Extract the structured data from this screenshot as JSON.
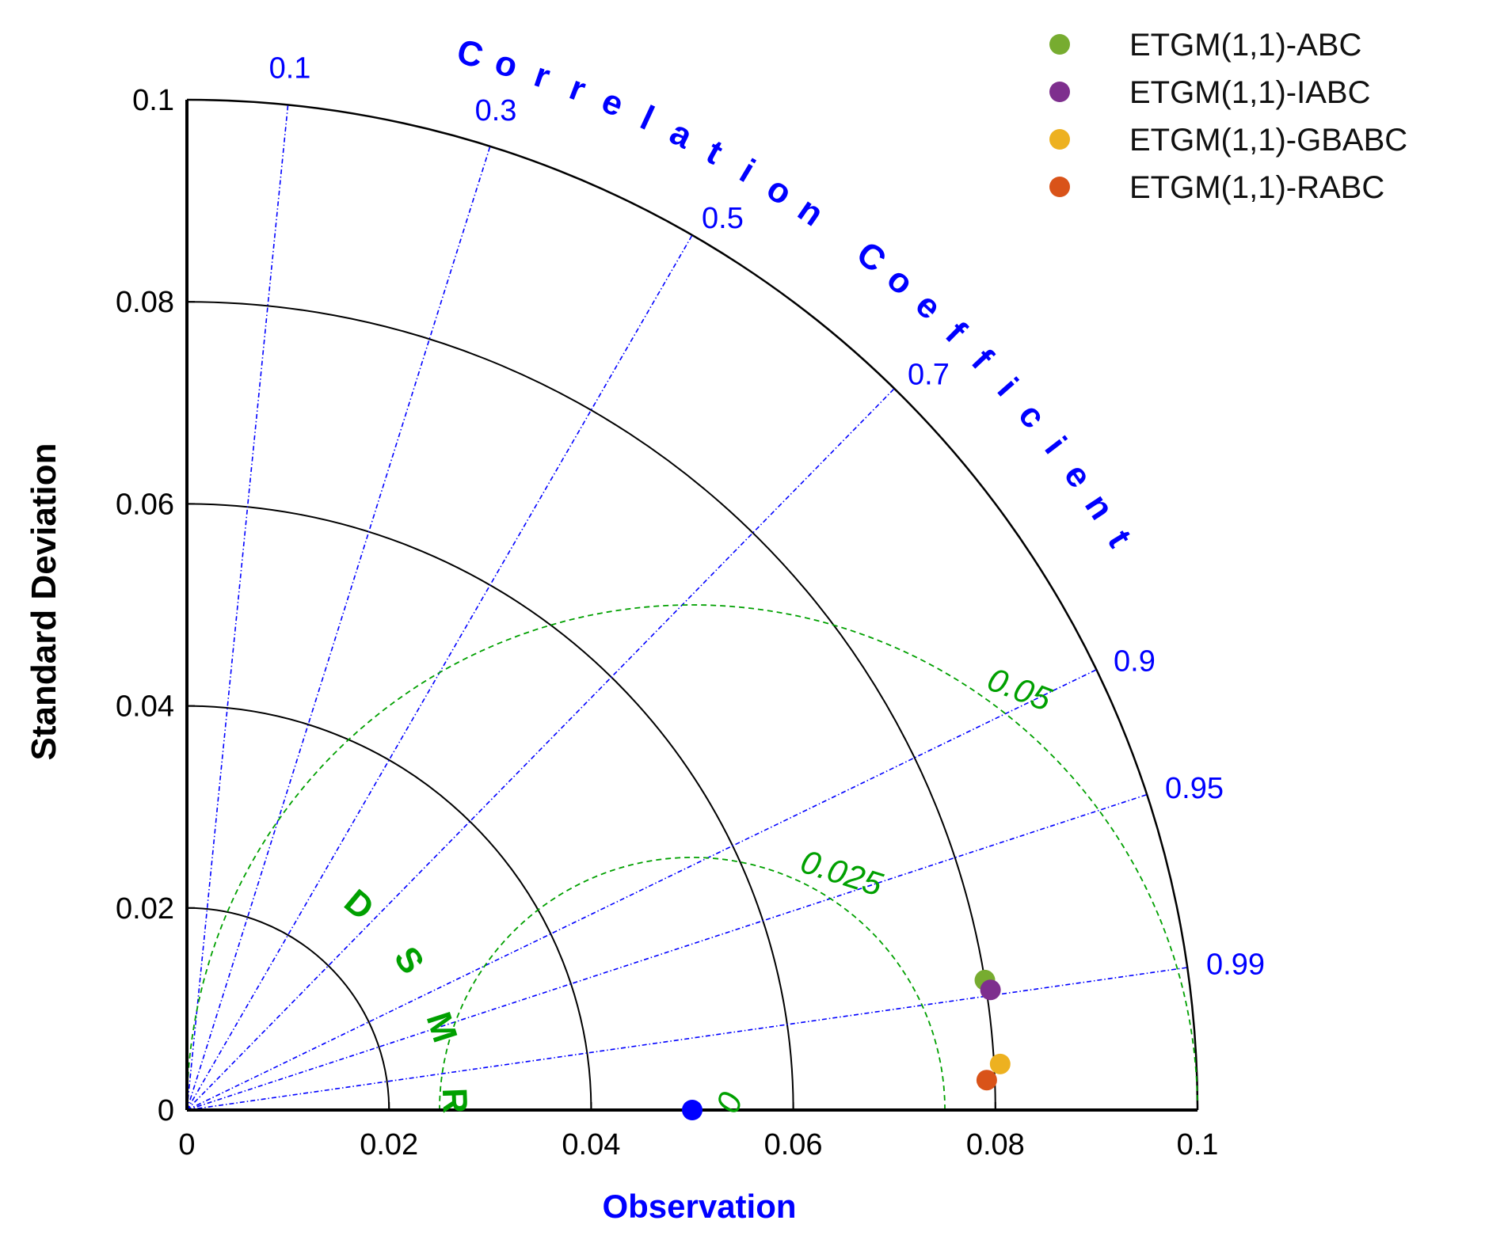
{
  "chart_data": {
    "type": "scatter",
    "subtype": "taylor-diagram",
    "ylabel": "Standard Deviation",
    "xlabel": "Observation",
    "correlation_label": "Correlation Coefficient",
    "rmsd_label": "RMSD",
    "std_range": [
      0,
      0.1
    ],
    "std_ticks": [
      0,
      0.02,
      0.04,
      0.06,
      0.08,
      0.1
    ],
    "std_tick_labels": [
      "0",
      "0.02",
      "0.04",
      "0.06",
      "0.08",
      "0.1"
    ],
    "correlation_ticks": [
      0.1,
      0.3,
      0.5,
      0.7,
      0.9,
      0.95,
      0.99
    ],
    "correlation_tick_labels": [
      "0.1",
      "0.3",
      "0.5",
      "0.7",
      "0.9",
      "0.95",
      "0.99"
    ],
    "rmsd_contours": [
      0.025,
      0.05
    ],
    "rmsd_tick_labels": [
      "0",
      "0.025",
      "0.05"
    ],
    "observation": {
      "std": 0.05,
      "correlation": 1.0,
      "color": "#0000ff"
    },
    "series": [
      {
        "name": "ETGM(1,1)-ABC",
        "std": 0.08,
        "correlation": 0.987,
        "color": "#77ac30"
      },
      {
        "name": "ETGM(1,1)-IABC",
        "std": 0.0804,
        "correlation": 0.989,
        "color": "#7e2f8e"
      },
      {
        "name": "ETGM(1,1)-GBABC",
        "std": 0.0806,
        "correlation": 0.9984,
        "color": "#edb120"
      },
      {
        "name": "ETGM(1,1)-RABC",
        "std": 0.0792,
        "correlation": 0.9993,
        "color": "#d95319"
      }
    ],
    "legend_position": "top-right",
    "colors": {
      "axis_label": "#0000ff",
      "correlation": "#0000ff",
      "rmsd": "#00a000",
      "arcs": "#000000"
    }
  }
}
